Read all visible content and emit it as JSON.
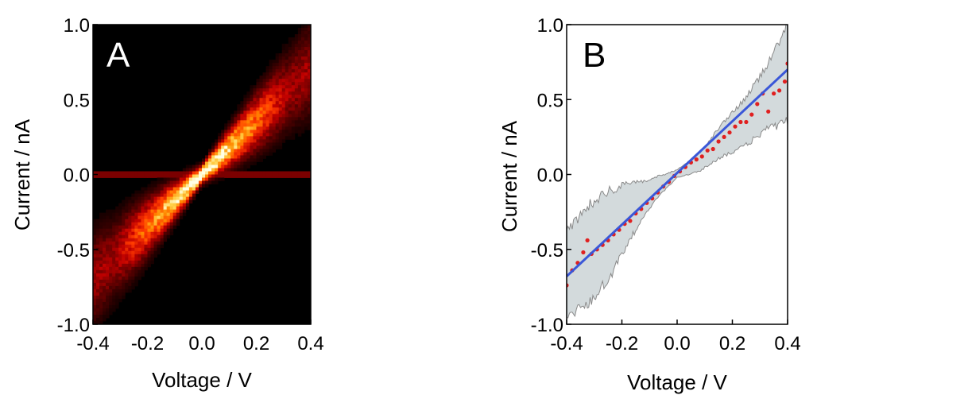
{
  "chart_data": [
    {
      "panel_label": "A",
      "type": "heatmap",
      "xlabel": "Voltage / V",
      "ylabel": "Current / nA",
      "xlim": [
        -0.4,
        0.4
      ],
      "ylim": [
        -1.0,
        1.0
      ],
      "xticks": [
        "-0.4",
        "-0.2",
        "0.0",
        "0.2",
        "0.4"
      ],
      "yticks": [
        "-1.0",
        "-0.5",
        "0.0",
        "0.5",
        "1.0"
      ],
      "colormap": [
        "#000000",
        "#5a0000",
        "#c00000",
        "#ff3b00",
        "#ff8a00",
        "#ffd24a",
        "#ffffe6"
      ],
      "band_slope": 1.75
    },
    {
      "panel_label": "B",
      "type": "line",
      "xlabel": "Voltage / V",
      "ylabel": "Current / nA",
      "xlim": [
        -0.4,
        0.4
      ],
      "ylim": [
        -1.0,
        1.0
      ],
      "xticks": [
        "-0.4",
        "-0.2",
        "0.0",
        "0.2",
        "0.4"
      ],
      "yticks": [
        "-1.0",
        "-0.5",
        "0.0",
        "0.5",
        "1.0"
      ],
      "colors": {
        "points": "#e02020",
        "fit": "#3a57d8",
        "band_fill": "#d3dadc",
        "band_edge": "#8a8a8a"
      },
      "series": [
        {
          "kind": "points",
          "x": [
            -0.4,
            -0.38,
            -0.36,
            -0.34,
            -0.325,
            -0.31,
            -0.29,
            -0.27,
            -0.25,
            -0.23,
            -0.21,
            -0.19,
            -0.17,
            -0.15,
            -0.13,
            -0.11,
            -0.09,
            -0.07,
            -0.05,
            -0.03,
            -0.01,
            0.01,
            0.03,
            0.05,
            0.07,
            0.09,
            0.11,
            0.13,
            0.15,
            0.17,
            0.19,
            0.21,
            0.23,
            0.25,
            0.27,
            0.29,
            0.31,
            0.33,
            0.35,
            0.37,
            0.39,
            0.4
          ],
          "y": [
            -0.74,
            -0.64,
            -0.59,
            -0.52,
            -0.44,
            -0.53,
            -0.5,
            -0.47,
            -0.44,
            -0.4,
            -0.37,
            -0.33,
            -0.31,
            -0.26,
            -0.23,
            -0.19,
            -0.16,
            -0.12,
            -0.08,
            -0.05,
            -0.01,
            0.02,
            0.05,
            0.08,
            0.1,
            0.12,
            0.16,
            0.17,
            0.22,
            0.25,
            0.28,
            0.32,
            0.35,
            0.35,
            0.4,
            0.47,
            0.54,
            0.42,
            0.54,
            0.56,
            0.62,
            0.74
          ]
        },
        {
          "kind": "fit",
          "x": [
            -0.4,
            0.4
          ],
          "y": [
            -0.68,
            0.7
          ]
        },
        {
          "kind": "band",
          "x": [
            -0.4,
            -0.32,
            -0.24,
            -0.16,
            -0.08,
            0.0,
            0.08,
            0.16,
            0.24,
            0.32,
            0.4
          ],
          "upper": [
            -0.38,
            -0.2,
            -0.1,
            -0.06,
            -0.02,
            0.03,
            0.14,
            0.33,
            0.49,
            0.71,
            1.0
          ],
          "lower": [
            -0.95,
            -0.86,
            -0.67,
            -0.4,
            -0.17,
            -0.02,
            0.02,
            0.12,
            0.18,
            0.3,
            0.35
          ]
        }
      ]
    }
  ]
}
